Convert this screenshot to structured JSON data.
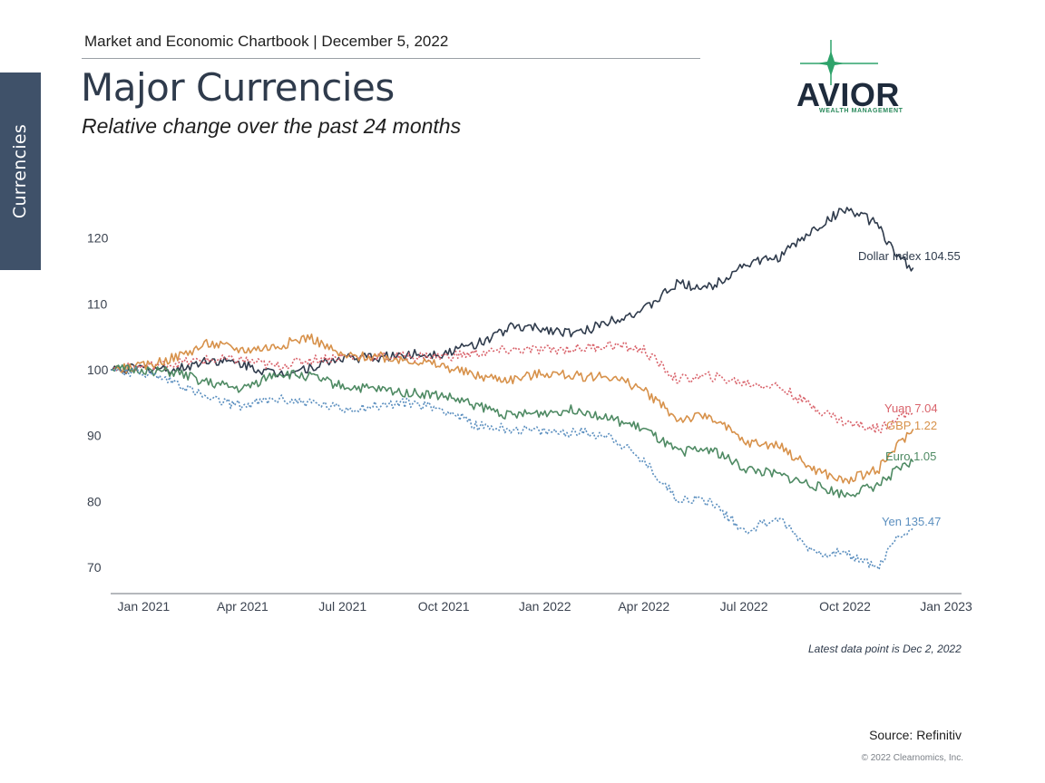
{
  "side_tab": "Currencies",
  "header": {
    "chartbook": "Market and Economic Chartbook | December 5, 2022",
    "title": "Major Currencies",
    "subtitle": "Relative change over the past 24 months"
  },
  "logo": {
    "name": "AVIOR",
    "tagline": "WEALTH MANAGEMENT",
    "star_color": "#2fa36b"
  },
  "footer": {
    "note": "Latest data point is Dec 2, 2022",
    "source": "Source: Refinitiv",
    "copyright": "© 2022 Clearnomics, Inc."
  },
  "chart_data": {
    "type": "line",
    "title": "",
    "xlabel": "",
    "ylabel": "",
    "xlim": [
      "2020-12-02",
      "2023-01-15"
    ],
    "ylim": [
      66,
      130
    ],
    "yticks": [
      70,
      80,
      90,
      100,
      110,
      120
    ],
    "xticks": [
      {
        "date": "2021-01-01",
        "label": "Jan 2021"
      },
      {
        "date": "2021-04-01",
        "label": "Apr 2021"
      },
      {
        "date": "2021-07-01",
        "label": "Jul 2021"
      },
      {
        "date": "2021-10-01",
        "label": "Oct 2021"
      },
      {
        "date": "2022-01-01",
        "label": "Jan 2022"
      },
      {
        "date": "2022-04-01",
        "label": "Apr 2022"
      },
      {
        "date": "2022-07-01",
        "label": "Jul 2022"
      },
      {
        "date": "2022-10-01",
        "label": "Oct 2022"
      },
      {
        "date": "2023-01-01",
        "label": "Jan 2023"
      }
    ],
    "grid": false,
    "legend": "end-of-line labels",
    "series": [
      {
        "name": "Dollar Index",
        "label": "Dollar Index 104.55",
        "color": "#2f3b4c",
        "dash": "solid",
        "points": [
          [
            "2020-12-02",
            100
          ],
          [
            "2021-01-01",
            100.2
          ],
          [
            "2021-02-01",
            100.0
          ],
          [
            "2021-03-01",
            101.5
          ],
          [
            "2021-04-01",
            100.8
          ],
          [
            "2021-05-01",
            99.3
          ],
          [
            "2021-06-01",
            100.3
          ],
          [
            "2021-07-01",
            101.8
          ],
          [
            "2021-08-01",
            101.8
          ],
          [
            "2021-09-01",
            102.3
          ],
          [
            "2021-10-01",
            102.5
          ],
          [
            "2021-11-01",
            104.0
          ],
          [
            "2021-12-01",
            106.5
          ],
          [
            "2022-01-01",
            106.2
          ],
          [
            "2022-02-01",
            105.5
          ],
          [
            "2022-03-01",
            107.5
          ],
          [
            "2022-04-01",
            109.0
          ],
          [
            "2022-05-01",
            113.0
          ],
          [
            "2022-06-01",
            112.5
          ],
          [
            "2022-07-01",
            116.0
          ],
          [
            "2022-08-01",
            117.0
          ],
          [
            "2022-09-01",
            121.0
          ],
          [
            "2022-10-01",
            124.5
          ],
          [
            "2022-11-01",
            122.0
          ],
          [
            "2022-11-15",
            117.5
          ],
          [
            "2022-12-02",
            115.5
          ]
        ]
      },
      {
        "name": "Yuan",
        "label": "Yuan 7.04",
        "color": "#d9636b",
        "dash": "dotted",
        "points": [
          [
            "2020-12-02",
            100
          ],
          [
            "2021-01-01",
            100.5
          ],
          [
            "2021-02-01",
            101.0
          ],
          [
            "2021-03-01",
            101.5
          ],
          [
            "2021-04-01",
            101.5
          ],
          [
            "2021-05-01",
            100.5
          ],
          [
            "2021-06-01",
            101.5
          ],
          [
            "2021-07-01",
            102.0
          ],
          [
            "2021-08-01",
            102.0
          ],
          [
            "2021-09-01",
            102.0
          ],
          [
            "2021-10-01",
            102.0
          ],
          [
            "2021-11-01",
            102.5
          ],
          [
            "2021-12-01",
            103.0
          ],
          [
            "2022-01-01",
            103.0
          ],
          [
            "2022-02-01",
            103.2
          ],
          [
            "2022-03-01",
            103.8
          ],
          [
            "2022-04-01",
            103.0
          ],
          [
            "2022-05-01",
            98.5
          ],
          [
            "2022-06-01",
            99.0
          ],
          [
            "2022-07-01",
            98.0
          ],
          [
            "2022-08-01",
            97.5
          ],
          [
            "2022-09-01",
            94.5
          ],
          [
            "2022-10-01",
            92.0
          ],
          [
            "2022-11-01",
            91.0
          ],
          [
            "2022-11-15",
            92.5
          ],
          [
            "2022-12-02",
            93.5
          ]
        ]
      },
      {
        "name": "GBP",
        "label": "GBP 1.22",
        "color": "#d7914a",
        "dash": "solid",
        "points": [
          [
            "2020-12-02",
            100
          ],
          [
            "2021-01-01",
            100.5
          ],
          [
            "2021-02-01",
            102.0
          ],
          [
            "2021-03-01",
            104.0
          ],
          [
            "2021-04-01",
            103.0
          ],
          [
            "2021-05-01",
            103.5
          ],
          [
            "2021-06-01",
            105.0
          ],
          [
            "2021-07-01",
            102.0
          ],
          [
            "2021-08-01",
            102.0
          ],
          [
            "2021-09-01",
            101.5
          ],
          [
            "2021-10-01",
            100.5
          ],
          [
            "2021-11-01",
            99.0
          ],
          [
            "2021-12-01",
            98.5
          ],
          [
            "2022-01-01",
            99.5
          ],
          [
            "2022-02-01",
            99.0
          ],
          [
            "2022-03-01",
            99.0
          ],
          [
            "2022-04-01",
            97.0
          ],
          [
            "2022-05-01",
            92.5
          ],
          [
            "2022-06-01",
            93.0
          ],
          [
            "2022-07-01",
            89.0
          ],
          [
            "2022-08-01",
            88.5
          ],
          [
            "2022-09-01",
            85.0
          ],
          [
            "2022-10-01",
            83.0
          ],
          [
            "2022-11-01",
            85.0
          ],
          [
            "2022-11-15",
            88.0
          ],
          [
            "2022-12-02",
            91.0
          ]
        ]
      },
      {
        "name": "Euro",
        "label": "Euro 1.05",
        "color": "#4e8a63",
        "dash": "solid",
        "points": [
          [
            "2020-12-02",
            100
          ],
          [
            "2021-01-01",
            100.0
          ],
          [
            "2021-02-01",
            99.5
          ],
          [
            "2021-03-01",
            98.0
          ],
          [
            "2021-04-01",
            97.0
          ],
          [
            "2021-05-01",
            99.5
          ],
          [
            "2021-06-01",
            99.0
          ],
          [
            "2021-07-01",
            97.5
          ],
          [
            "2021-08-01",
            97.0
          ],
          [
            "2021-09-01",
            96.5
          ],
          [
            "2021-10-01",
            96.0
          ],
          [
            "2021-11-01",
            94.5
          ],
          [
            "2021-12-01",
            93.0
          ],
          [
            "2022-01-01",
            93.5
          ],
          [
            "2022-02-01",
            94.0
          ],
          [
            "2022-03-01",
            92.5
          ],
          [
            "2022-04-01",
            91.0
          ],
          [
            "2022-05-01",
            87.5
          ],
          [
            "2022-06-01",
            88.0
          ],
          [
            "2022-07-01",
            85.0
          ],
          [
            "2022-08-01",
            84.0
          ],
          [
            "2022-09-01",
            82.5
          ],
          [
            "2022-10-01",
            81.0
          ],
          [
            "2022-11-01",
            82.5
          ],
          [
            "2022-11-15",
            84.5
          ],
          [
            "2022-12-02",
            86.0
          ]
        ]
      },
      {
        "name": "Yen",
        "label": "Yen 135.47",
        "color": "#5b8fbf",
        "dash": "dotted",
        "points": [
          [
            "2020-12-02",
            100
          ],
          [
            "2021-01-01",
            99.5
          ],
          [
            "2021-02-01",
            98.0
          ],
          [
            "2021-03-01",
            95.5
          ],
          [
            "2021-04-01",
            94.5
          ],
          [
            "2021-05-01",
            95.5
          ],
          [
            "2021-06-01",
            95.0
          ],
          [
            "2021-07-01",
            94.0
          ],
          [
            "2021-08-01",
            94.5
          ],
          [
            "2021-09-01",
            95.0
          ],
          [
            "2021-10-01",
            94.0
          ],
          [
            "2021-11-01",
            91.5
          ],
          [
            "2021-12-01",
            91.0
          ],
          [
            "2022-01-01",
            90.5
          ],
          [
            "2022-02-01",
            90.5
          ],
          [
            "2022-03-01",
            90.0
          ],
          [
            "2022-04-01",
            86.0
          ],
          [
            "2022-05-01",
            80.5
          ],
          [
            "2022-06-01",
            80.0
          ],
          [
            "2022-07-01",
            75.5
          ],
          [
            "2022-08-01",
            77.5
          ],
          [
            "2022-09-01",
            72.5
          ],
          [
            "2022-10-01",
            72.0
          ],
          [
            "2022-11-01",
            70.0
          ],
          [
            "2022-11-15",
            74.0
          ],
          [
            "2022-12-02",
            76.0
          ]
        ]
      }
    ]
  }
}
